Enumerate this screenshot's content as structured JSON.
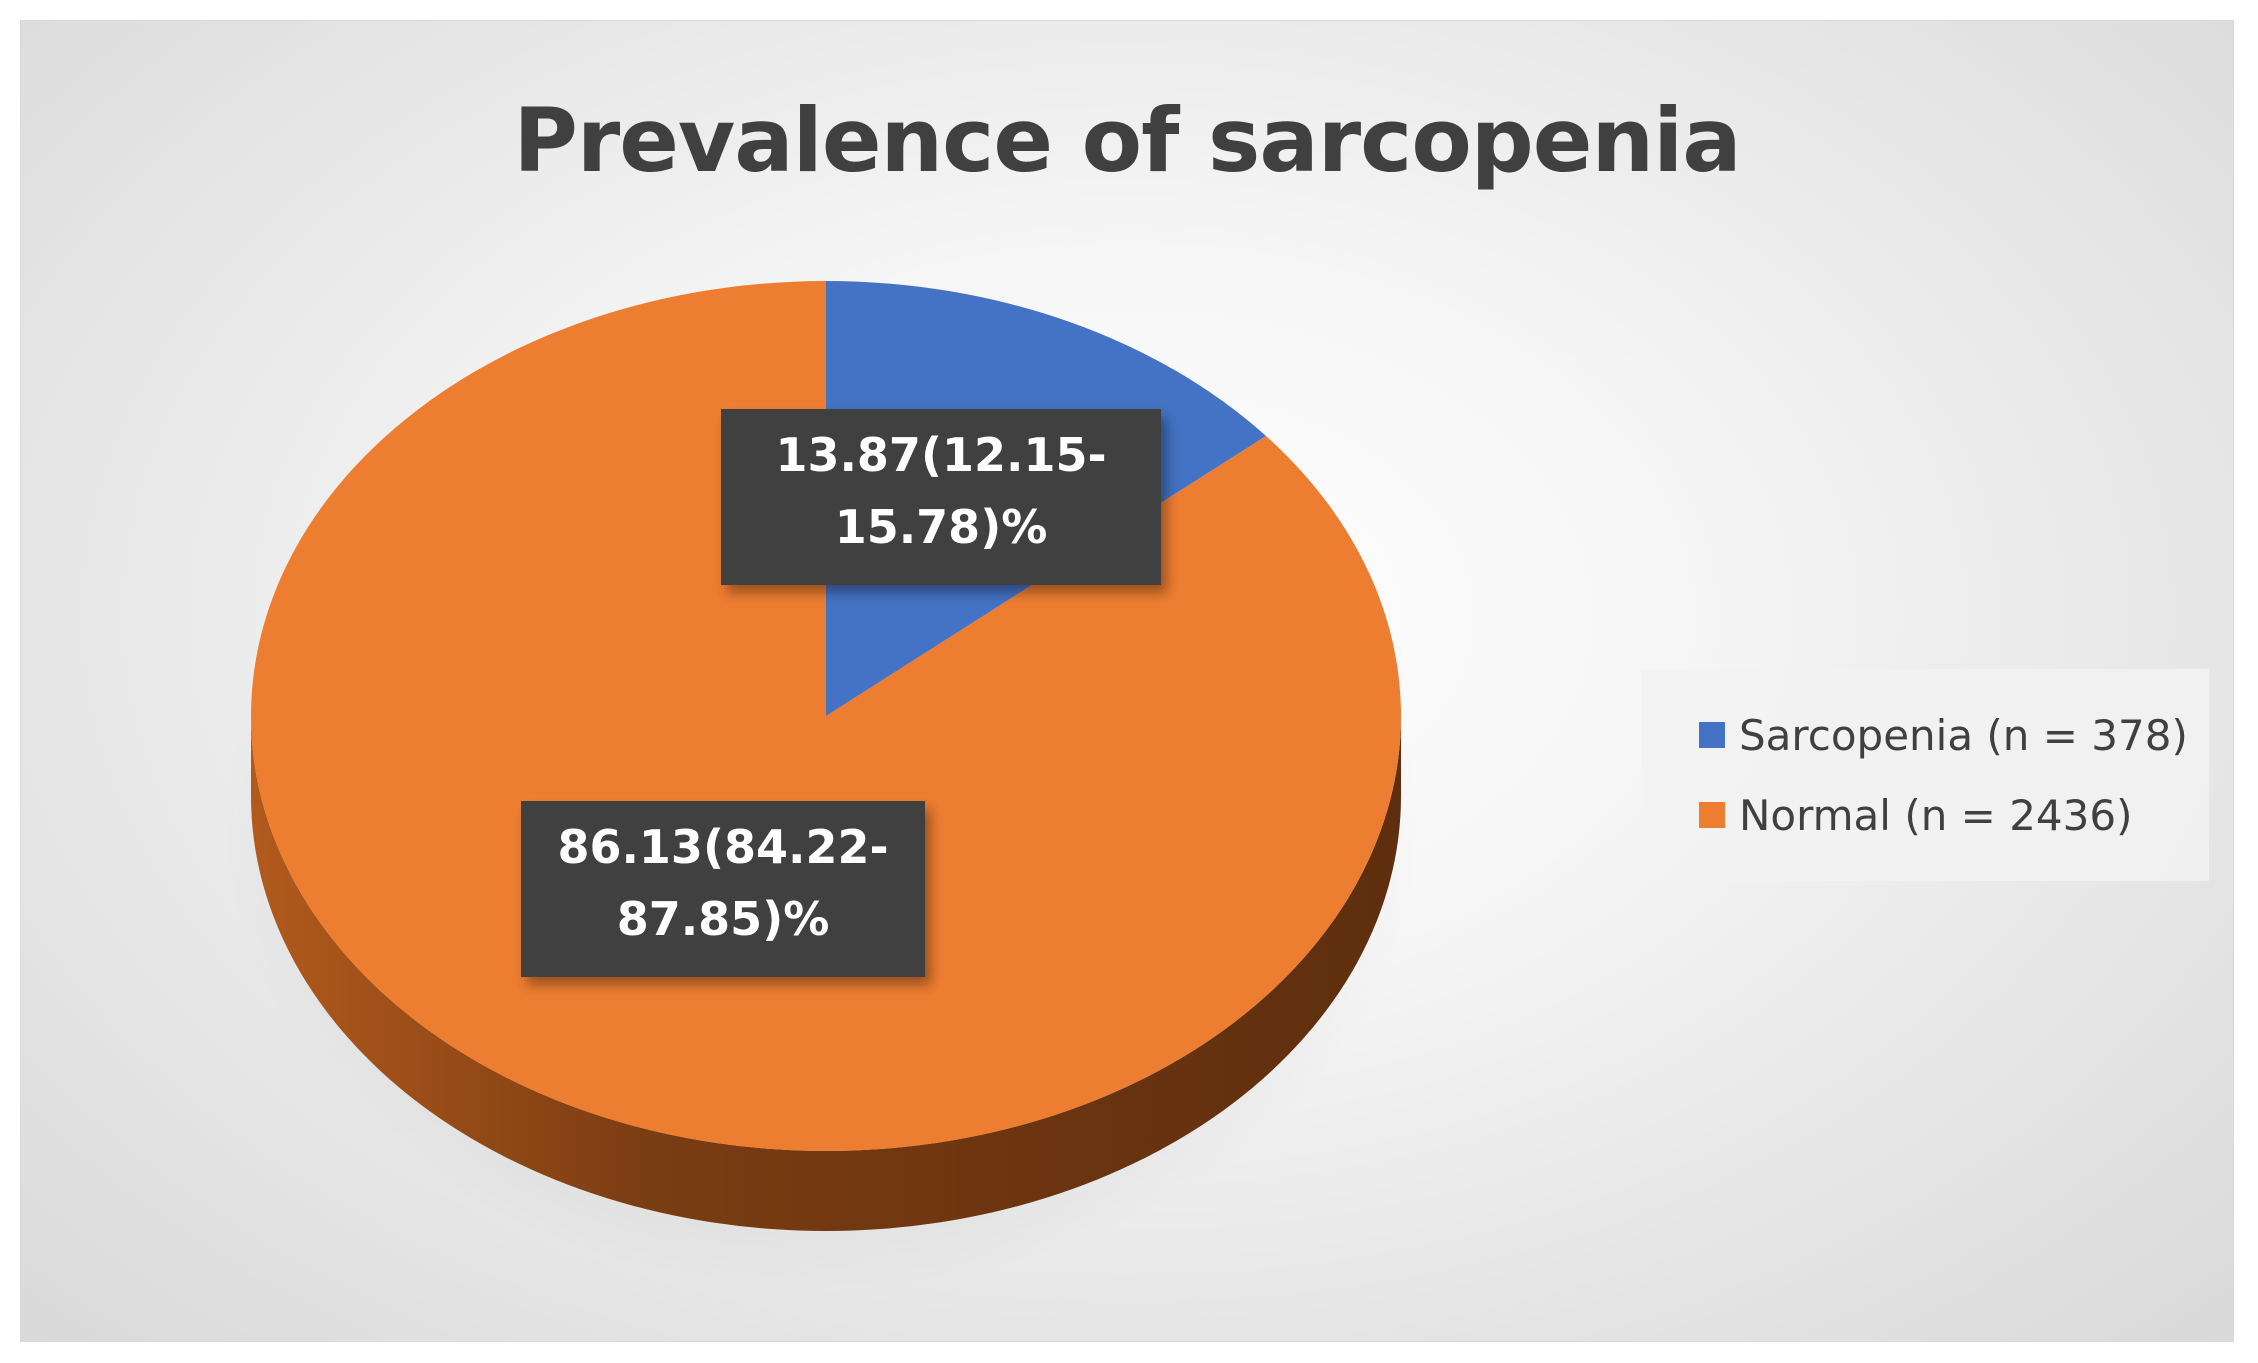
{
  "chart_data": {
    "type": "pie",
    "title": "Prevalence of sarcopenia",
    "series": [
      {
        "name": "Sarcopenia (n = 378)",
        "value": 13.87,
        "label": "13.87(12.15-\n15.78)%",
        "label_lines": [
          "13.87(12.15-",
          "15.78)%"
        ],
        "color": "#4472c4"
      },
      {
        "name": "Normal (n = 2436)",
        "value": 86.13,
        "label": "86.13(84.22-\n87.85)%",
        "label_lines": [
          "86.13(84.22-",
          "87.85)%"
        ],
        "color": "#ed7d31"
      }
    ],
    "legend_position": "right",
    "style": "3d",
    "label_box_color": "#404040"
  }
}
